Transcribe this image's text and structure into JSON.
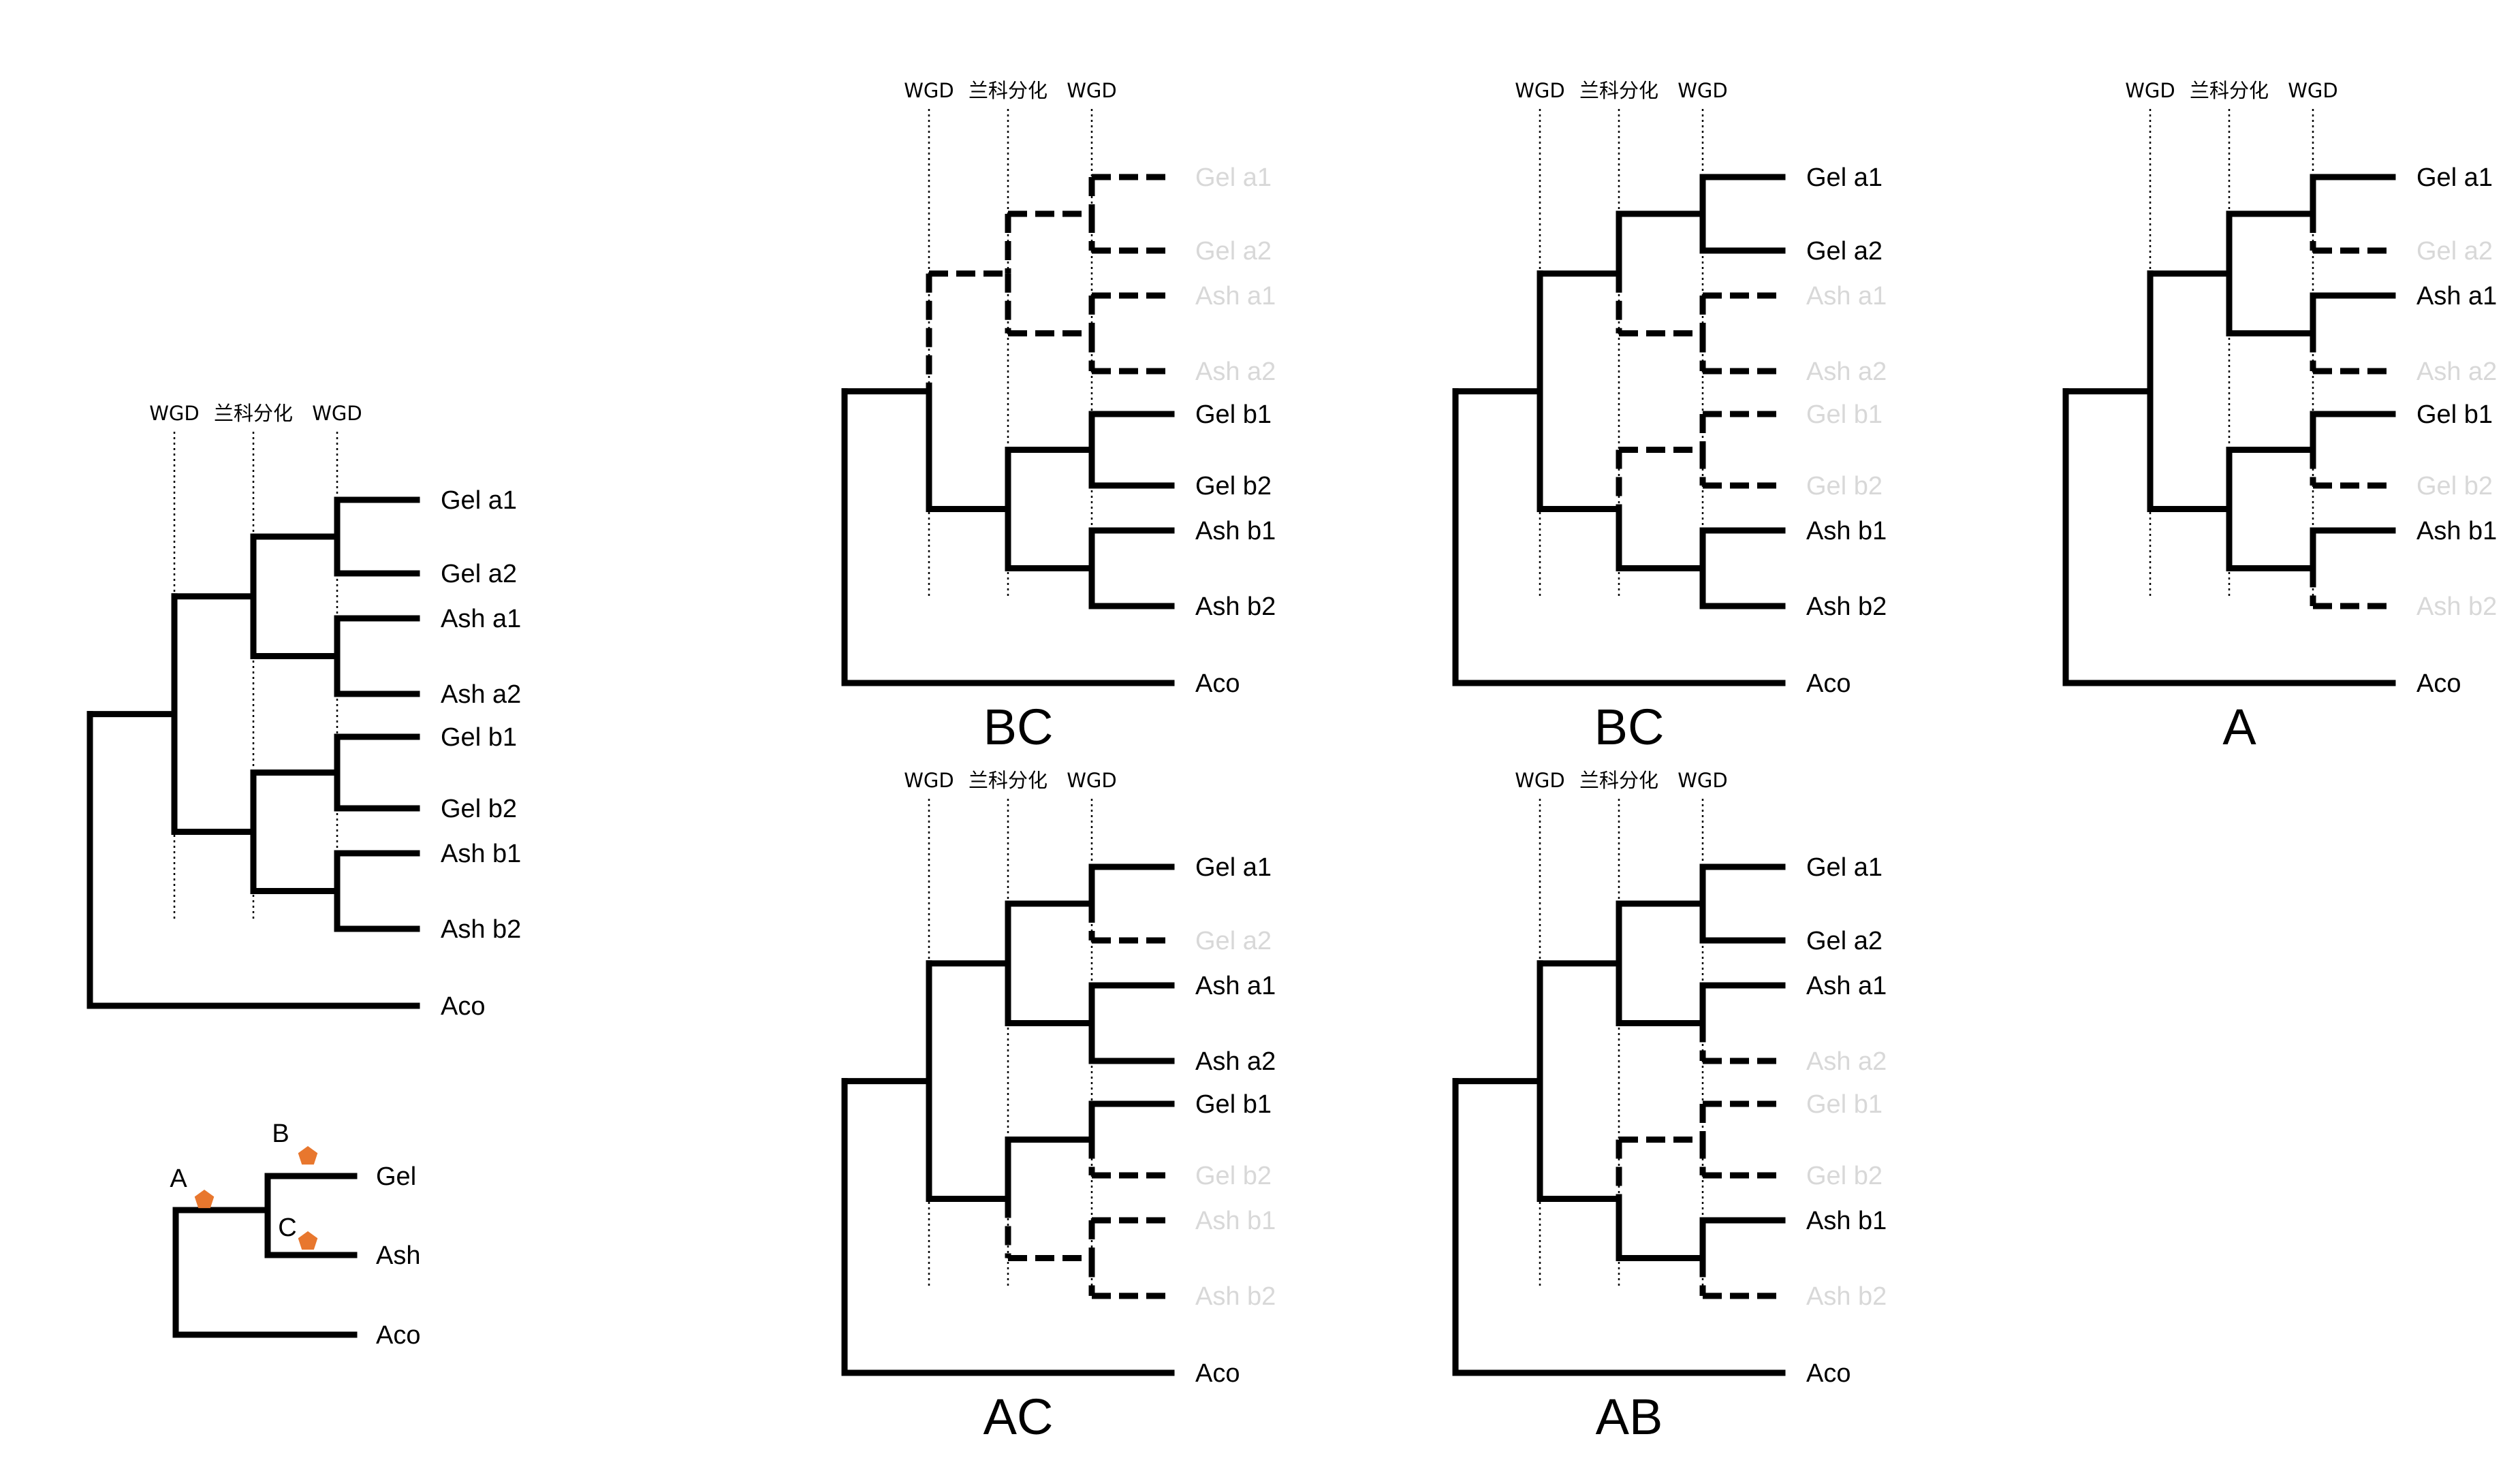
{
  "colors": {
    "line": "#000000",
    "lost_label": "#d8d8d8",
    "event_marker": "#e8772e"
  },
  "header_labels": [
    "WGD",
    "兰科分化",
    "WGD"
  ],
  "leaf_labels": [
    "Gel a1",
    "Gel a2",
    "Ash a1",
    "Ash a2",
    "Gel b1",
    "Gel b2",
    "Ash b1",
    "Ash b2"
  ],
  "outgroup_label": "Aco",
  "species_tree": {
    "taxa": [
      "Gel",
      "Ash",
      "Aco"
    ],
    "events": [
      {
        "label": "A",
        "marker": "pentagon"
      },
      {
        "label": "B",
        "marker": "pentagon"
      },
      {
        "label": "C",
        "marker": "pentagon"
      }
    ]
  },
  "scenarios": [
    {
      "caption": "",
      "kept": [
        true,
        true,
        true,
        true,
        true,
        true,
        true,
        true
      ]
    },
    {
      "caption": "BC",
      "kept": [
        false,
        false,
        false,
        false,
        true,
        true,
        true,
        true
      ]
    },
    {
      "caption": "BC",
      "kept": [
        true,
        true,
        false,
        false,
        false,
        false,
        true,
        true
      ]
    },
    {
      "caption": "A",
      "kept": [
        true,
        false,
        true,
        false,
        true,
        false,
        true,
        false
      ]
    },
    {
      "caption": "AC",
      "kept": [
        true,
        false,
        true,
        true,
        true,
        false,
        false,
        false
      ]
    },
    {
      "caption": "AB",
      "kept": [
        true,
        true,
        true,
        false,
        false,
        false,
        true,
        false
      ]
    }
  ]
}
